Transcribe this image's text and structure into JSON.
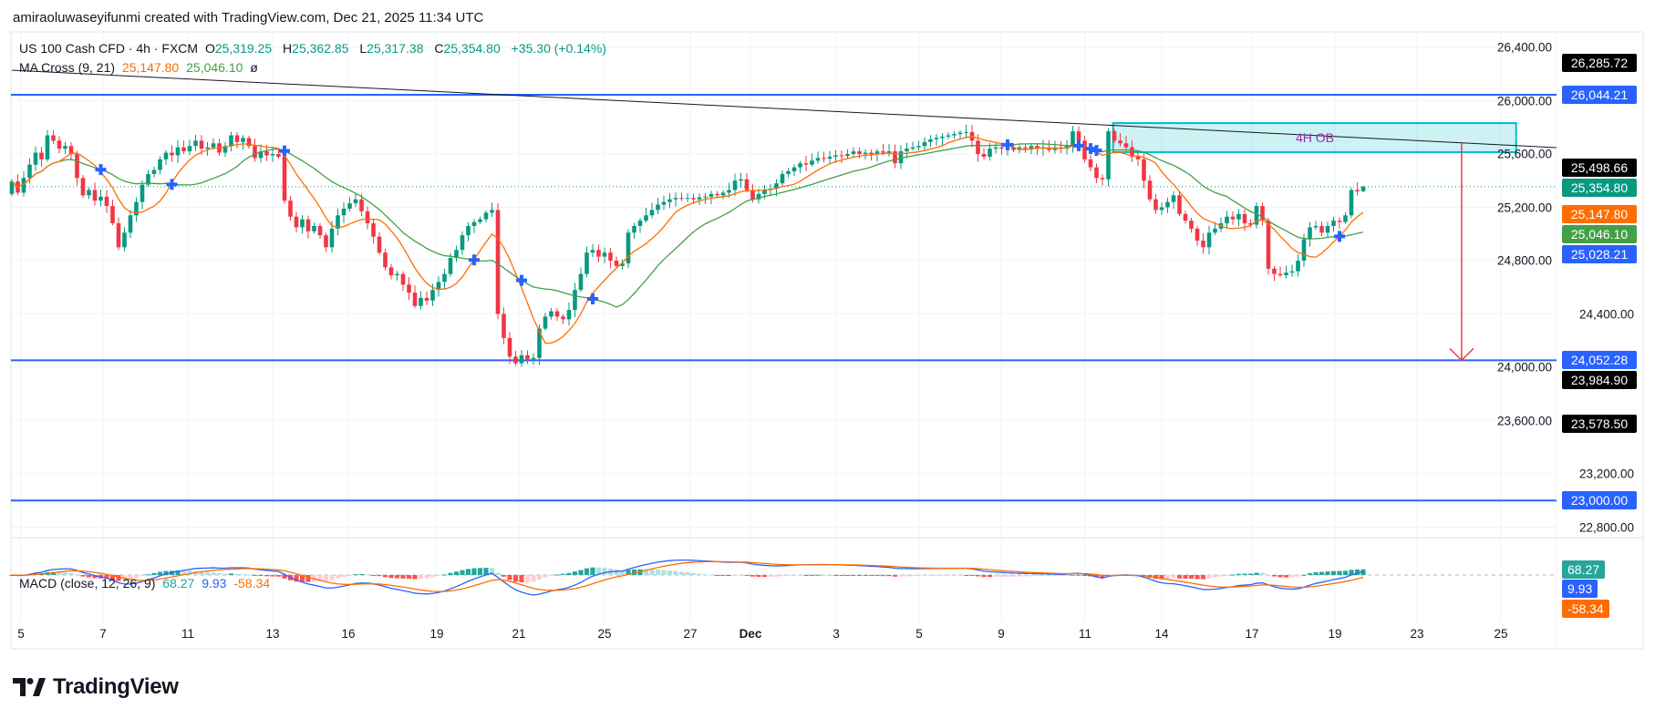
{
  "header": {
    "attribution": "amiraoluwaseyifunmi created with TradingView.com, Dec 21, 2025 11:34 UTC"
  },
  "legend": {
    "symbol": "US 100 Cash CFD · 4h · FXCM",
    "o_label": "O",
    "open": "25,319.25",
    "h_label": "H",
    "high": "25,362.85",
    "l_label": "L",
    "low": "25,317.38",
    "c_label": "C",
    "close": "25,354.80",
    "change": "+35.30 (+0.14%)"
  },
  "ma_legend": {
    "name": "MA Cross (9, 21)",
    "fast": "25,147.80",
    "slow": "25,046.10",
    "hidden_icon": "ø"
  },
  "macd_legend": {
    "name": "MACD (close, 12, 26, 9)",
    "histogram": "68.27",
    "macd": "9.93",
    "signal": "-58.34"
  },
  "annotations": {
    "ob_label": "4H OB"
  },
  "price_axis": {
    "ticks": [
      {
        "value": 26400,
        "text": "26,400.00"
      },
      {
        "value": 26000,
        "text": "26,000.00"
      },
      {
        "value": 25600,
        "text": "25,600.00"
      },
      {
        "value": 25200,
        "text": "25,200.00"
      },
      {
        "value": 24800,
        "text": "24,800.00"
      },
      {
        "value": 24400,
        "text": "24,400.00"
      },
      {
        "value": 24000,
        "text": "24,000.00"
      },
      {
        "value": 23600,
        "text": "23,600.00"
      },
      {
        "value": 23200,
        "text": "23,200.00"
      },
      {
        "value": 22800,
        "text": "22,800.00"
      }
    ],
    "labels": [
      {
        "value": 26285.72,
        "text": "26,285.72",
        "color": "#000000"
      },
      {
        "value": 26044.21,
        "text": "26,044.21",
        "color": "#2962ff"
      },
      {
        "value": 25498.66,
        "text": "25,498.66",
        "color": "#000000"
      },
      {
        "value": 25354.8,
        "text": "25,354.80",
        "color": "#089981"
      },
      {
        "value": 25147.8,
        "text": "25,147.80",
        "color": "#ff6d00"
      },
      {
        "value": 25046.1,
        "text": "25,046.10",
        "color": "#43a047"
      },
      {
        "value": 25028.21,
        "text": "25,028.21",
        "color": "#2962ff"
      },
      {
        "value": 24052.28,
        "text": "24,052.28",
        "color": "#2962ff"
      },
      {
        "value": 23984.9,
        "text": "23,984.90",
        "color": "#000000"
      },
      {
        "value": 23578.5,
        "text": "23,578.50",
        "color": "#000000"
      },
      {
        "value": 23000.0,
        "text": "23,000.00",
        "color": "#2962ff"
      }
    ]
  },
  "macd_axis": {
    "labels": [
      {
        "text": "68.27",
        "color": "#26a69a"
      },
      {
        "text": "9.93",
        "color": "#2962ff"
      },
      {
        "text": "-58.34",
        "color": "#ff6d00"
      }
    ]
  },
  "time_axis": {
    "ticks": [
      "5",
      "7",
      "11",
      "13",
      "16",
      "19",
      "21",
      "25",
      "27",
      "Dec",
      "3",
      "5",
      "9",
      "11",
      "14",
      "17",
      "19",
      "23",
      "25"
    ]
  },
  "logo": {
    "text": "TradingView"
  },
  "colors": {
    "up": "#089981",
    "down": "#f23645",
    "ma_fast": "#ff6d00",
    "ma_slow": "#43a047",
    "level": "#2962ff",
    "trendline": "#131722",
    "ob_fill": "#00bcd4",
    "arrow": "#f23645",
    "macd": "#2962ff",
    "signal": "#ff6d00"
  },
  "chart_data": {
    "type": "candlestick",
    "symbol": "US 100 Cash CFD",
    "timeframe": "4h",
    "ylim": [
      22800,
      26400
    ],
    "last": {
      "open": 25319.25,
      "high": 25362.85,
      "low": 25317.38,
      "close": 25354.8
    },
    "closes": [
      25394,
      25310,
      25420,
      25520,
      25610,
      25560,
      25740,
      25700,
      25640,
      25660,
      25600,
      25420,
      25290,
      25330,
      25250,
      25280,
      25210,
      25080,
      24900,
      25010,
      25140,
      25240,
      25370,
      25450,
      25480,
      25560,
      25610,
      25590,
      25650,
      25620,
      25660,
      25700,
      25640,
      25650,
      25680,
      25610,
      25660,
      25740,
      25690,
      25720,
      25660,
      25570,
      25620,
      25590,
      25600,
      25580,
      25250,
      25130,
      25050,
      25110,
      25020,
      25060,
      24990,
      24900,
      25040,
      25140,
      25190,
      25230,
      25260,
      25170,
      25080,
      24980,
      24860,
      24750,
      24690,
      24700,
      24620,
      24560,
      24460,
      24520,
      24500,
      24580,
      24640,
      24700,
      24820,
      24880,
      24990,
      25060,
      25090,
      25110,
      25160,
      25180,
      24400,
      24220,
      24080,
      24030,
      24090,
      24060,
      24070,
      24290,
      24380,
      24420,
      24380,
      24360,
      24430,
      24580,
      24700,
      24860,
      24880,
      24830,
      24860,
      24800,
      24760,
      24780,
      25010,
      25060,
      25100,
      25140,
      25180,
      25220,
      25240,
      25260,
      25270,
      25265,
      25270,
      25260,
      25275,
      25280,
      25300,
      25290,
      25310,
      25330,
      25400,
      25410,
      25330,
      25260,
      25300,
      25330,
      25340,
      25380,
      25450,
      25470,
      25500,
      25530,
      25520,
      25550,
      25570,
      25565,
      25580,
      25590,
      25585,
      25600,
      25620,
      25600,
      25610,
      25600,
      25620,
      25610,
      25620,
      25530,
      25620,
      25640,
      25650,
      25660,
      25690,
      25710,
      25720,
      25730,
      25740,
      25750,
      25760,
      25765,
      25700,
      25600,
      25580,
      25640,
      25650,
      25640,
      25650,
      25630,
      25650,
      25640,
      25660,
      25640,
      25650,
      25630,
      25650,
      25640,
      25660,
      25770,
      25700,
      25560,
      25500,
      25420,
      25410,
      25770,
      25700,
      25680,
      25650,
      25580,
      25560,
      25400,
      25260,
      25180,
      25200,
      25240,
      25290,
      25150,
      25100,
      25040,
      24950,
      24900,
      25010,
      25040,
      25080,
      25130,
      25110,
      25150,
      25080,
      25070,
      25210,
      25100,
      24740,
      24700,
      24690,
      24710,
      24720,
      24800,
      24960,
      25050,
      25060,
      25010,
      25060,
      25100,
      25090,
      25140,
      25330,
      25319.25,
      25354.8
    ],
    "indicators": {
      "ma_cross": {
        "fast": 9,
        "slow": 21
      },
      "macd": {
        "fast": 12,
        "slow": 26,
        "signal": 9
      }
    },
    "horizontal_levels": [
      26044.21,
      24052.28,
      23000.0
    ],
    "trendline": {
      "from_bar": 0,
      "from_price": 26229,
      "to_bar": 260.6,
      "to_price": 25648
    },
    "order_block": {
      "label": "4H OB",
      "from_bar": 185.8,
      "to_bar": 253.8,
      "top": 25832,
      "bottom": 25614
    },
    "projection_arrow": {
      "bar": 244.6,
      "from_price": 25680,
      "to_price": 24052.28
    },
    "current_price": 25354.8
  }
}
